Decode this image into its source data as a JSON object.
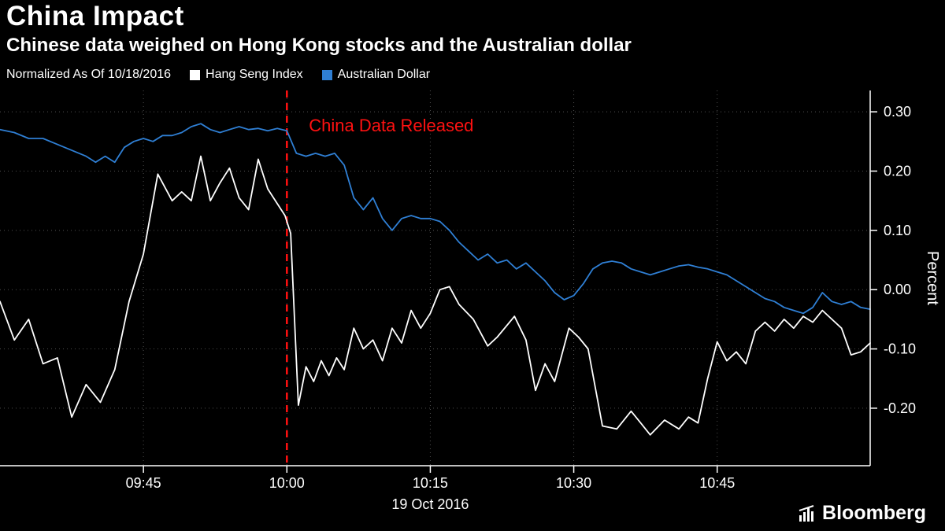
{
  "header": {
    "title": "China Impact",
    "subtitle": "Chinese data weighed on Hong Kong stocks and the Australian dollar"
  },
  "legend": {
    "normalized": "Normalized As Of 10/18/2016",
    "series": [
      {
        "label": "Hang Seng Index",
        "color": "#ffffff"
      },
      {
        "label": "Australian Dollar",
        "color": "#2f7fd4"
      }
    ]
  },
  "annotation": {
    "label": "China Data Released",
    "color": "#ff1111",
    "x_minutes": 30
  },
  "axis": {
    "y_label": "Percent",
    "date_label": "19 Oct 2016",
    "xlim": [
      0,
      91
    ],
    "ylim": [
      -0.297,
      0.336
    ],
    "x_unit": "minutes since 09:30",
    "x_ticks": [
      {
        "value": 15,
        "label": "09:45"
      },
      {
        "value": 30,
        "label": "10:00"
      },
      {
        "value": 45,
        "label": "10:15"
      },
      {
        "value": 60,
        "label": "10:30"
      },
      {
        "value": 75,
        "label": "10:45"
      }
    ],
    "y_ticks": [
      {
        "value": 0.3,
        "label": "0.30"
      },
      {
        "value": 0.2,
        "label": "0.20"
      },
      {
        "value": 0.1,
        "label": "0.10"
      },
      {
        "value": 0.0,
        "label": "0.00"
      },
      {
        "value": -0.1,
        "label": "-0.10"
      },
      {
        "value": -0.2,
        "label": "-0.20"
      }
    ]
  },
  "colors": {
    "background": "#000000",
    "grid": "#4f4f4f",
    "axis": "#ffffff",
    "text": "#ffffff"
  },
  "footer": {
    "brand": "Bloomberg"
  },
  "chart_data": {
    "type": "line",
    "title": "China Impact",
    "xlabel": "19 Oct 2016",
    "ylabel": "Percent",
    "x_unit": "minutes since 09:30",
    "grid": "dotted",
    "legend_position": "top",
    "series": [
      {
        "name": "Hang Seng Index",
        "color": "#ffffff",
        "x": [
          0,
          1.5,
          3,
          4.5,
          6,
          7.5,
          9,
          10.5,
          12,
          13.5,
          15,
          16.5,
          18,
          19,
          20,
          21,
          22,
          23,
          24,
          25,
          26,
          27,
          28,
          29,
          29.8,
          30.4,
          31.2,
          32,
          32.8,
          33.6,
          34.4,
          35.2,
          36,
          37,
          38,
          39,
          40,
          41,
          42,
          43,
          44,
          45,
          46,
          47,
          48,
          49.5,
          51,
          52,
          53.8,
          55,
          56,
          57,
          58,
          59.5,
          60.5,
          61.5,
          63,
          64.5,
          66,
          67,
          68,
          69.5,
          71,
          72,
          73,
          74,
          75,
          76,
          77,
          78,
          79,
          80,
          81,
          82,
          83,
          84,
          85,
          86,
          87,
          88,
          89,
          90,
          91
        ],
        "y": [
          -0.02,
          -0.085,
          -0.05,
          -0.125,
          -0.115,
          -0.215,
          -0.16,
          -0.19,
          -0.135,
          -0.02,
          0.06,
          0.195,
          0.15,
          0.165,
          0.15,
          0.225,
          0.15,
          0.18,
          0.205,
          0.155,
          0.135,
          0.22,
          0.17,
          0.145,
          0.125,
          0.095,
          -0.195,
          -0.13,
          -0.155,
          -0.12,
          -0.145,
          -0.115,
          -0.135,
          -0.065,
          -0.1,
          -0.085,
          -0.12,
          -0.065,
          -0.09,
          -0.035,
          -0.065,
          -0.04,
          0.0,
          0.005,
          -0.025,
          -0.05,
          -0.095,
          -0.08,
          -0.045,
          -0.085,
          -0.17,
          -0.125,
          -0.155,
          -0.065,
          -0.08,
          -0.1,
          -0.23,
          -0.235,
          -0.205,
          -0.225,
          -0.245,
          -0.22,
          -0.235,
          -0.215,
          -0.225,
          -0.15,
          -0.088,
          -0.12,
          -0.105,
          -0.125,
          -0.07,
          -0.055,
          -0.07,
          -0.05,
          -0.065,
          -0.045,
          -0.055,
          -0.035,
          -0.05,
          -0.065,
          -0.11,
          -0.105,
          -0.09
        ]
      },
      {
        "name": "Australian Dollar",
        "color": "#2f7fd4",
        "x": [
          0,
          1.5,
          3,
          4.5,
          6,
          7.5,
          9,
          10,
          11,
          12,
          13,
          14,
          15,
          16,
          17,
          18,
          19,
          20,
          21,
          22,
          23,
          24,
          25,
          26,
          27,
          28,
          29,
          30,
          31,
          32,
          33,
          34,
          35,
          36,
          37,
          38,
          39,
          40,
          41,
          42,
          43,
          44,
          45,
          46,
          47,
          48,
          49,
          50,
          51,
          52,
          53,
          54,
          55,
          56,
          57,
          58,
          59,
          60,
          61,
          62,
          63,
          64,
          65,
          66,
          67,
          68,
          69,
          70,
          71,
          72,
          73,
          74,
          75,
          76,
          77,
          78,
          79,
          80,
          81,
          82,
          83,
          84,
          85,
          86,
          87,
          88,
          89,
          90,
          91
        ],
        "y": [
          0.27,
          0.265,
          0.255,
          0.255,
          0.245,
          0.235,
          0.225,
          0.215,
          0.225,
          0.215,
          0.24,
          0.25,
          0.255,
          0.25,
          0.26,
          0.26,
          0.265,
          0.275,
          0.28,
          0.27,
          0.265,
          0.27,
          0.275,
          0.27,
          0.272,
          0.268,
          0.272,
          0.268,
          0.23,
          0.225,
          0.23,
          0.225,
          0.23,
          0.21,
          0.155,
          0.135,
          0.155,
          0.12,
          0.1,
          0.12,
          0.125,
          0.12,
          0.12,
          0.115,
          0.1,
          0.08,
          0.065,
          0.05,
          0.06,
          0.045,
          0.05,
          0.035,
          0.045,
          0.03,
          0.015,
          -0.005,
          -0.017,
          -0.01,
          0.01,
          0.035,
          0.045,
          0.048,
          0.045,
          0.035,
          0.03,
          0.025,
          0.03,
          0.035,
          0.04,
          0.042,
          0.038,
          0.035,
          0.03,
          0.025,
          0.015,
          0.005,
          -0.005,
          -0.015,
          -0.02,
          -0.03,
          -0.035,
          -0.04,
          -0.03,
          -0.005,
          -0.02,
          -0.025,
          -0.02,
          -0.03,
          -0.033
        ]
      }
    ]
  }
}
